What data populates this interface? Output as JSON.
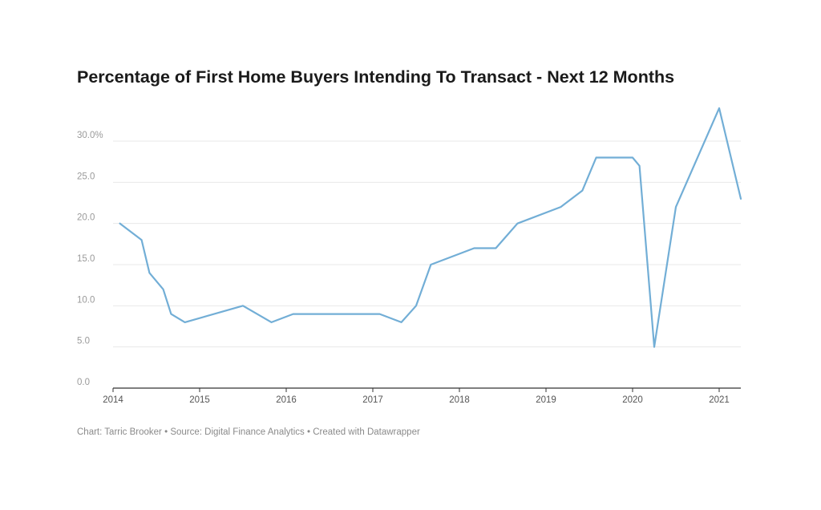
{
  "chart_data": {
    "type": "line",
    "title": "Percentage of First Home Buyers Intending To Transact - Next 12 Months",
    "xlabel": "",
    "ylabel": "",
    "xlim": [
      2014,
      2021.25
    ],
    "ylim": [
      0,
      30
    ],
    "grid": true,
    "series_color": "#72aed6",
    "y_ticks": [
      {
        "value": 0,
        "label": "0.0"
      },
      {
        "value": 5,
        "label": "5.0"
      },
      {
        "value": 10,
        "label": "10.0"
      },
      {
        "value": 15,
        "label": "15.0"
      },
      {
        "value": 20,
        "label": "20.0"
      },
      {
        "value": 25,
        "label": "25.0"
      },
      {
        "value": 30,
        "label": "30.0%"
      }
    ],
    "x_ticks": [
      {
        "value": 2014,
        "label": "2014"
      },
      {
        "value": 2015,
        "label": "2015"
      },
      {
        "value": 2016,
        "label": "2016"
      },
      {
        "value": 2017,
        "label": "2017"
      },
      {
        "value": 2018,
        "label": "2018"
      },
      {
        "value": 2019,
        "label": "2019"
      },
      {
        "value": 2020,
        "label": "2020"
      },
      {
        "value": 2021,
        "label": "2021"
      }
    ],
    "series": [
      {
        "x": [
          2014.08,
          2014.33,
          2014.42,
          2014.58,
          2014.67,
          2014.83,
          2015.5,
          2015.83,
          2016.08,
          2017.08,
          2017.33,
          2017.5,
          2017.67,
          2018.17,
          2018.42,
          2018.67,
          2019.17,
          2019.42,
          2019.58,
          2020.0,
          2020.08,
          2020.25,
          2020.5,
          2021.0,
          2021.25
        ],
        "y": [
          20,
          18,
          14,
          12,
          9,
          8,
          10,
          8,
          9,
          9,
          8,
          10,
          15,
          17,
          17,
          20,
          22,
          24,
          28,
          28,
          27,
          5,
          22,
          34,
          23
        ]
      }
    ]
  },
  "footer": {
    "chart_credit": "Chart: Tarric Brooker",
    "source": "Source: Digital Finance Analytics",
    "created_with": "Created with Datawrapper",
    "separator": " • "
  }
}
